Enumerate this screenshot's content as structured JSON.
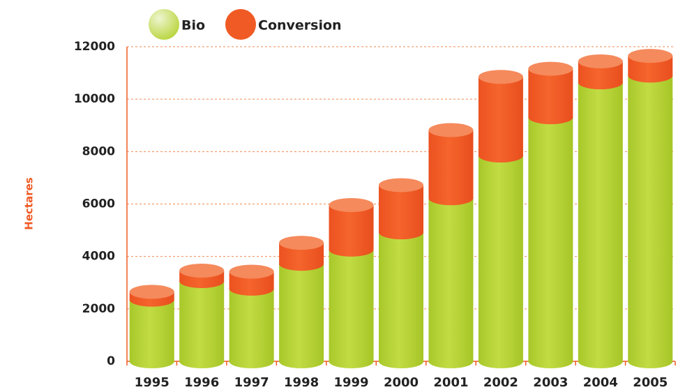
{
  "chart_data": {
    "type": "stacked_cylinder_bar",
    "y_label": "Hectares",
    "categories": [
      "1995",
      "1996",
      "1997",
      "1998",
      "1999",
      "2000",
      "2001",
      "2002",
      "2003",
      "2004",
      "2005"
    ],
    "series": [
      {
        "name": "Bio",
        "color": "#b5d334",
        "values": [
          2350,
          3060,
          2770,
          3720,
          4260,
          4920,
          6220,
          7850,
          9310,
          10640,
          10900
        ]
      },
      {
        "name": "Conversion",
        "color": "#f05a24",
        "values": [
          300,
          400,
          650,
          800,
          1700,
          1800,
          2600,
          3000,
          1850,
          800,
          750
        ]
      }
    ],
    "ylim": [
      0,
      12000
    ],
    "yticks": [
      0,
      2000,
      4000,
      6000,
      8000,
      10000,
      12000
    ],
    "grid": true
  }
}
